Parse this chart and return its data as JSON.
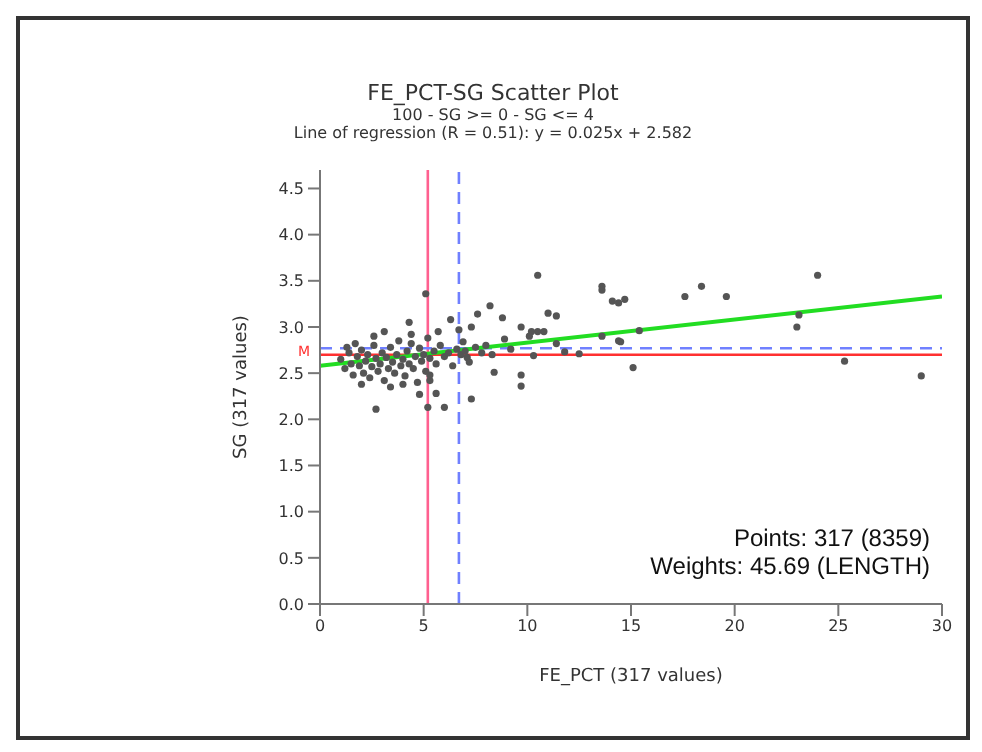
{
  "chart_data": {
    "type": "scatter",
    "title": "FE_PCT-SG Scatter Plot",
    "subtitle": "100 - SG >= 0 - SG <= 4\nLine of regression (R = 0.51):  y = 0.025x + 2.582",
    "xlabel": "FE_PCT (317 values)",
    "ylabel": "SG (317 values)",
    "annotations": [
      "Points: 317 (8359)",
      "Weights: 45.69 (LENGTH)"
    ],
    "xlim": [
      0,
      30
    ],
    "xticks": [
      0,
      5,
      10,
      15,
      20,
      25,
      30
    ],
    "ylim": [
      0,
      4.7
    ],
    "yticks": [
      {
        "value": 0,
        "label": "0.0"
      },
      0.5,
      {
        "value": 1,
        "label": "1.0"
      },
      1.5,
      {
        "value": 2,
        "label": "2.0"
      },
      2.5,
      {
        "value": 3,
        "label": "3.0"
      },
      3.5,
      {
        "value": 4,
        "label": "4.0"
      },
      4.5
    ],
    "grid": false,
    "ref_lines": [
      {
        "axis": "x",
        "value": 5.2,
        "color": "#ff6090",
        "line_style": "solid"
      },
      {
        "axis": "x",
        "value": 6.7,
        "color": "#7080ff",
        "line_style": "dashed"
      },
      {
        "axis": "y",
        "value": 2.7,
        "label": "M",
        "color": "#ff3030",
        "line_style": "solid"
      },
      {
        "axis": "y",
        "value": 2.77,
        "color": "#7080ff",
        "line_style": "dashed"
      }
    ],
    "series": [
      {
        "type": "scatter",
        "color": "#555555",
        "marker": "circle",
        "x": [
          10.5,
          5.1,
          8.2,
          13.6,
          13.6,
          14.1,
          14.4,
          14.7,
          11.0,
          11.4,
          8.8,
          7.6,
          6.3,
          4.3,
          3.1,
          6.7,
          7.3,
          9.7,
          10.2,
          10.5,
          10.8,
          13.6,
          14.4,
          15.4,
          8.9,
          10.1,
          11.4,
          11.8,
          12.5,
          10.3,
          8.3,
          9.2,
          7.1,
          15.1,
          9.7,
          9.7,
          8.4,
          7.3,
          5.6,
          6.0,
          5.2,
          4.8,
          2.7,
          4.0,
          5.3,
          5.3,
          24.0,
          18.4,
          17.6,
          19.6,
          23.1,
          23.0,
          14.5,
          25.3,
          29.0,
          1.0,
          1.2,
          1.4,
          1.5,
          1.6,
          1.8,
          1.9,
          2.0,
          2.1,
          2.2,
          2.3,
          2.4,
          2.5,
          2.6,
          2.7,
          2.8,
          2.9,
          3.0,
          3.1,
          3.2,
          3.3,
          3.4,
          3.5,
          3.6,
          3.7,
          3.8,
          3.9,
          4.0,
          4.1,
          4.2,
          4.3,
          4.4,
          4.5,
          4.6,
          4.7,
          4.8,
          4.9,
          5.0,
          5.1,
          5.2,
          5.3,
          5.5,
          5.6,
          5.8,
          6.0,
          6.2,
          6.4,
          6.6,
          6.8,
          7.0,
          7.2,
          7.5,
          7.8,
          8.0,
          1.3,
          2.0,
          2.6,
          3.4,
          4.4,
          1.7,
          5.7,
          6.9
        ],
        "values": [
          3.56,
          3.36,
          3.23,
          3.44,
          3.4,
          3.28,
          3.26,
          3.3,
          3.15,
          3.12,
          3.1,
          3.14,
          3.08,
          3.05,
          2.95,
          2.97,
          3.0,
          3.0,
          2.95,
          2.95,
          2.95,
          2.9,
          2.85,
          2.96,
          2.87,
          2.9,
          2.82,
          2.73,
          2.71,
          2.69,
          2.7,
          2.76,
          2.67,
          2.56,
          2.48,
          2.36,
          2.51,
          2.22,
          2.28,
          2.13,
          2.13,
          2.27,
          2.11,
          2.38,
          2.42,
          2.48,
          3.56,
          3.44,
          3.33,
          3.33,
          3.13,
          3.0,
          2.84,
          2.63,
          2.47,
          2.65,
          2.55,
          2.72,
          2.6,
          2.48,
          2.68,
          2.58,
          2.75,
          2.5,
          2.63,
          2.7,
          2.45,
          2.57,
          2.8,
          2.66,
          2.52,
          2.6,
          2.72,
          2.42,
          2.67,
          2.55,
          2.78,
          2.62,
          2.5,
          2.7,
          2.85,
          2.58,
          2.65,
          2.47,
          2.74,
          2.6,
          2.82,
          2.55,
          2.68,
          2.4,
          2.77,
          2.63,
          2.7,
          2.52,
          2.88,
          2.66,
          2.74,
          2.6,
          2.8,
          2.68,
          2.72,
          2.58,
          2.76,
          2.7,
          2.74,
          2.62,
          2.78,
          2.72,
          2.8,
          2.78,
          2.38,
          2.9,
          2.35,
          2.92,
          2.82,
          2.95,
          2.84
        ]
      },
      {
        "type": "line",
        "color": "#22dd22",
        "marker": "none",
        "x": [
          0,
          30
        ],
        "values": [
          2.58,
          3.33
        ]
      }
    ]
  }
}
